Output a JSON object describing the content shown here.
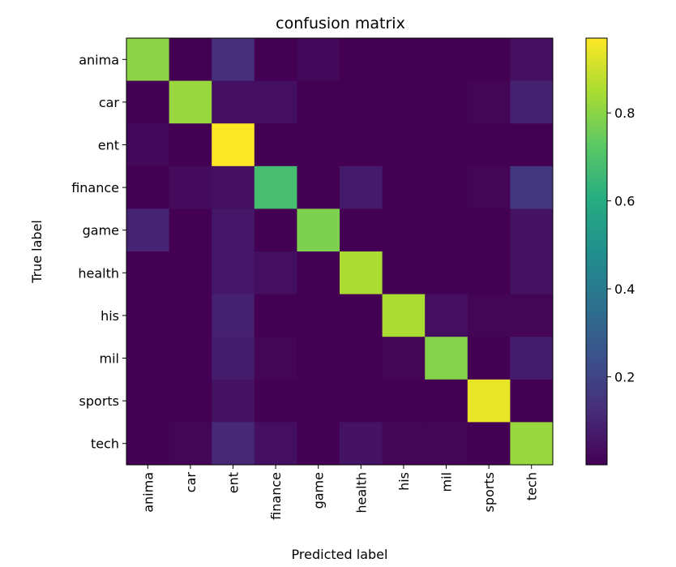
{
  "chart_data": {
    "type": "heatmap",
    "title": "confusion matrix",
    "xlabel": "Predicted label",
    "ylabel": "True label",
    "x_categories": [
      "anima",
      "car",
      "ent",
      "finance",
      "game",
      "health",
      "his",
      "mil",
      "sports",
      "tech"
    ],
    "y_categories": [
      "anima",
      "car",
      "ent",
      "finance",
      "game",
      "health",
      "his",
      "mil",
      "sports",
      "tech"
    ],
    "values": [
      [
        0.8,
        0.0,
        0.13,
        0.0,
        0.02,
        0.0,
        0.0,
        0.0,
        0.0,
        0.04
      ],
      [
        0.0,
        0.82,
        0.04,
        0.04,
        0.0,
        0.0,
        0.0,
        0.0,
        0.01,
        0.09
      ],
      [
        0.02,
        0.0,
        0.97,
        0.0,
        0.0,
        0.0,
        0.0,
        0.0,
        0.0,
        0.0
      ],
      [
        0.0,
        0.03,
        0.04,
        0.68,
        0.0,
        0.07,
        0.0,
        0.0,
        0.01,
        0.16
      ],
      [
        0.1,
        0.0,
        0.06,
        0.0,
        0.78,
        0.0,
        0.0,
        0.0,
        0.0,
        0.05
      ],
      [
        0.0,
        0.0,
        0.06,
        0.04,
        0.0,
        0.85,
        0.0,
        0.0,
        0.0,
        0.05
      ],
      [
        0.0,
        0.0,
        0.09,
        0.0,
        0.0,
        0.0,
        0.85,
        0.04,
        0.01,
        0.01
      ],
      [
        0.0,
        0.0,
        0.08,
        0.01,
        0.0,
        0.0,
        0.01,
        0.79,
        0.0,
        0.08
      ],
      [
        0.0,
        0.0,
        0.05,
        0.0,
        0.0,
        0.0,
        0.0,
        0.0,
        0.94,
        0.0
      ],
      [
        0.0,
        0.01,
        0.11,
        0.04,
        0.0,
        0.05,
        0.01,
        0.01,
        0.0,
        0.82
      ]
    ],
    "colormap": "viridis",
    "colorbar": {
      "range": [
        0.0,
        0.97
      ],
      "ticks": [
        0.2,
        0.4,
        0.6,
        0.8
      ],
      "tick_labels": [
        "0.2",
        "0.4",
        "0.6",
        "0.8"
      ]
    },
    "grid": false
  }
}
